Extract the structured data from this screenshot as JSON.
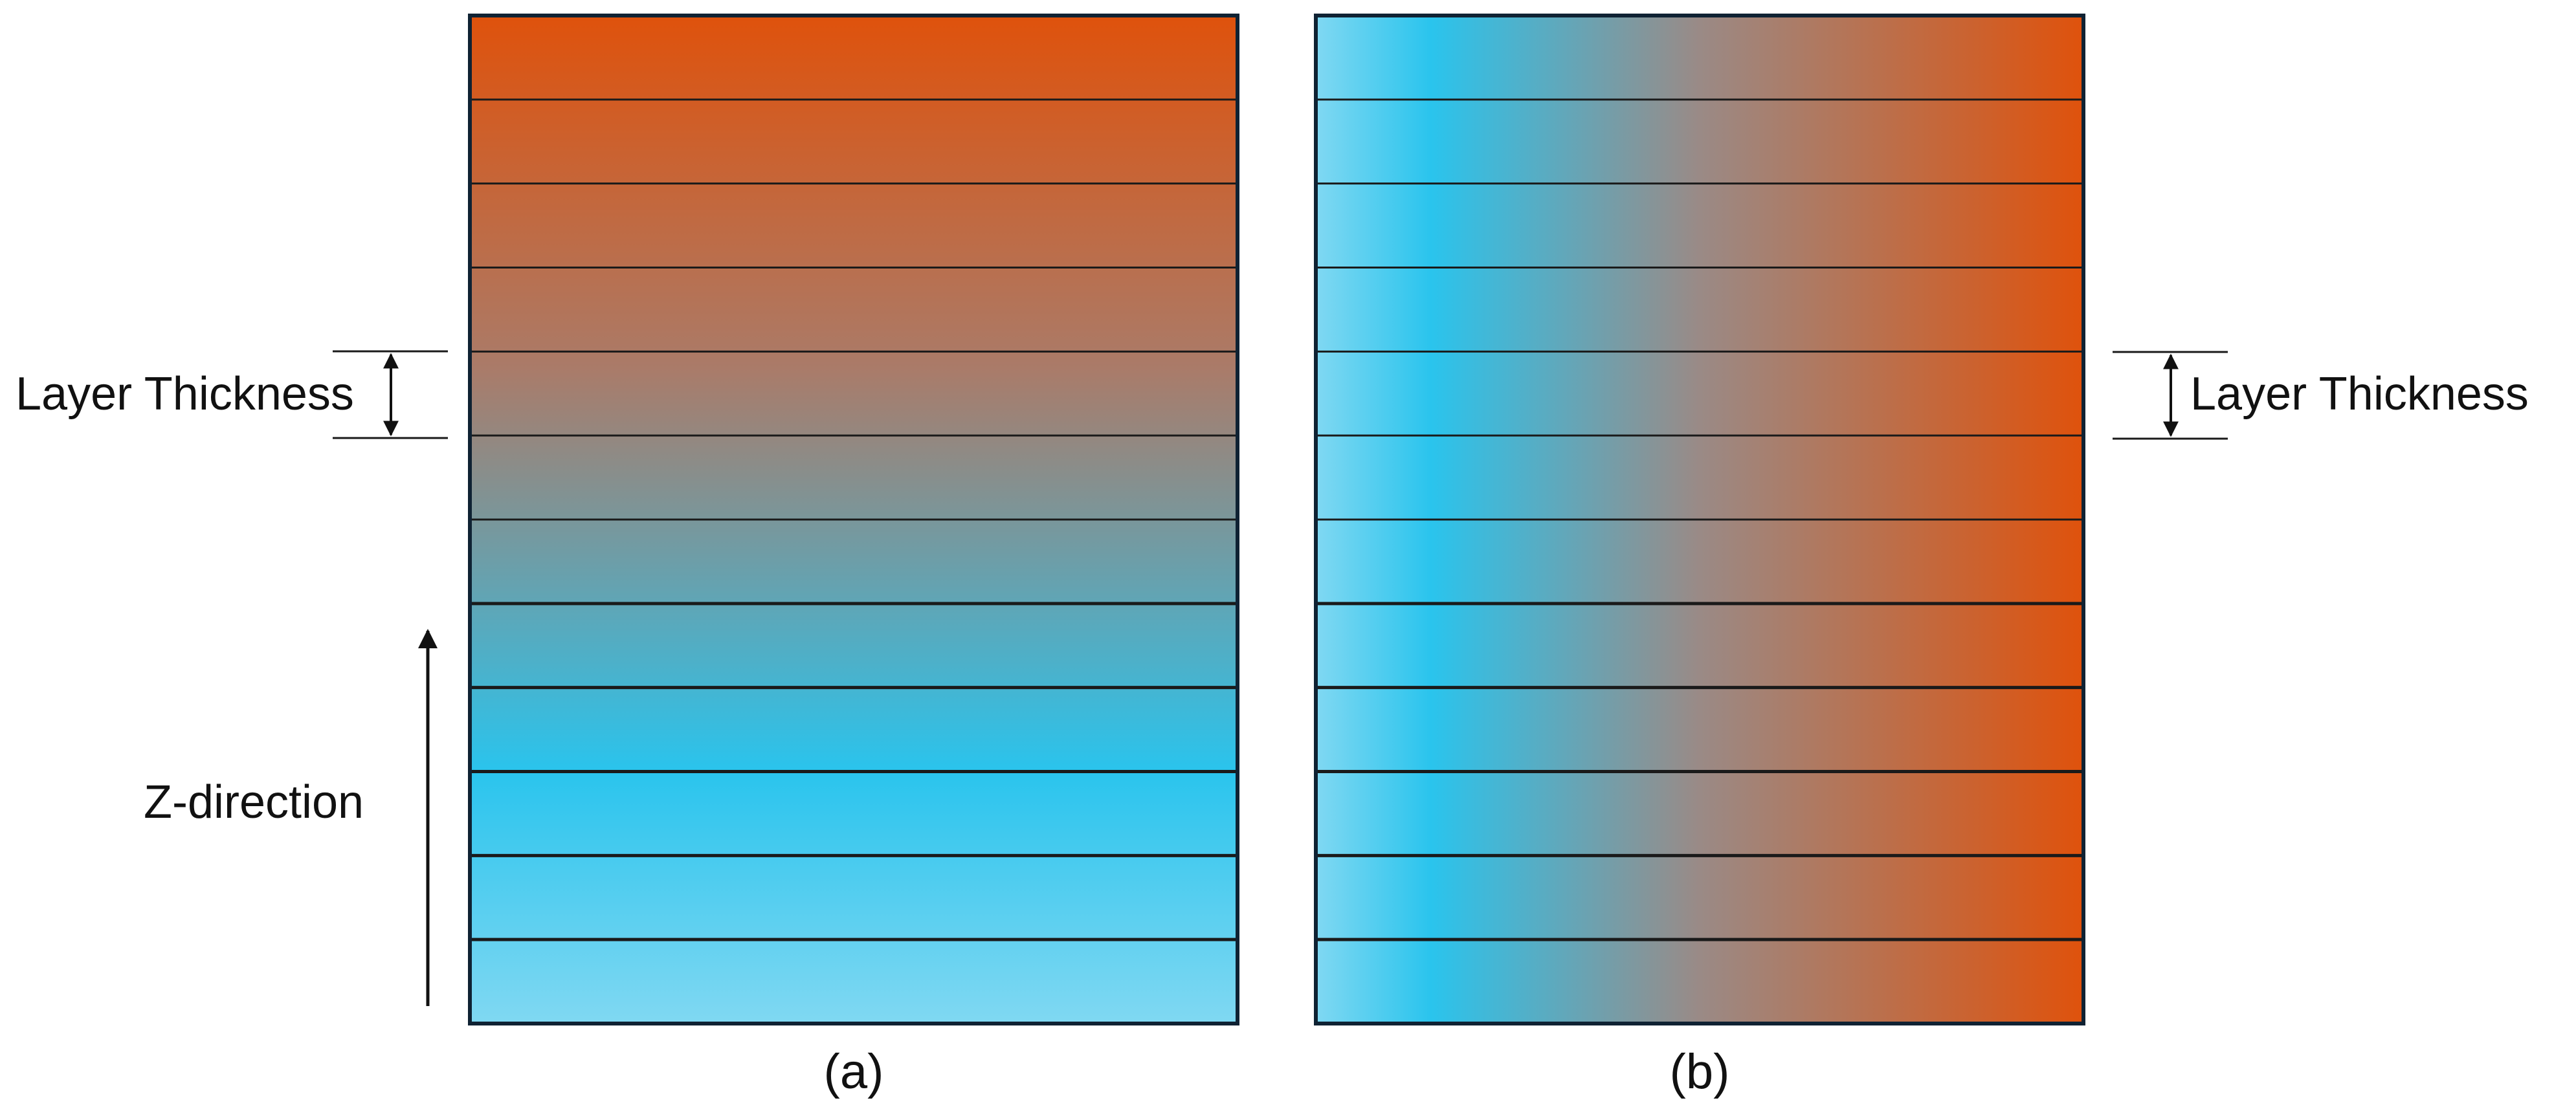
{
  "panels": [
    {
      "id": "a",
      "caption": "(a)",
      "layer_count": 12,
      "gradient_direction": "vertical",
      "gradient_stops": [
        {
          "offset": 0.0,
          "color": "#DF520C"
        },
        {
          "offset": 0.35,
          "color": "#AA7B69"
        },
        {
          "offset": 0.75,
          "color": "#2AC4ED"
        },
        {
          "offset": 1.0,
          "color": "#80D8F2"
        }
      ]
    },
    {
      "id": "b",
      "caption": "(b)",
      "layer_count": 12,
      "gradient_direction": "horizontal",
      "gradient_stops": [
        {
          "offset": 0.0,
          "color": "#80D8F2"
        },
        {
          "offset": 0.15,
          "color": "#2AC4ED"
        },
        {
          "offset": 0.5,
          "color": "#9A8A86"
        },
        {
          "offset": 1.0,
          "color": "#DF520C"
        }
      ]
    }
  ],
  "annotations": {
    "layer_thickness_left": "Layer Thickness",
    "layer_thickness_right": "Layer Thickness",
    "z_direction": "Z-direction"
  },
  "colors": {
    "outline": "#0F2233",
    "layer_line": "#1A1A1A",
    "arrow": "#111111"
  }
}
